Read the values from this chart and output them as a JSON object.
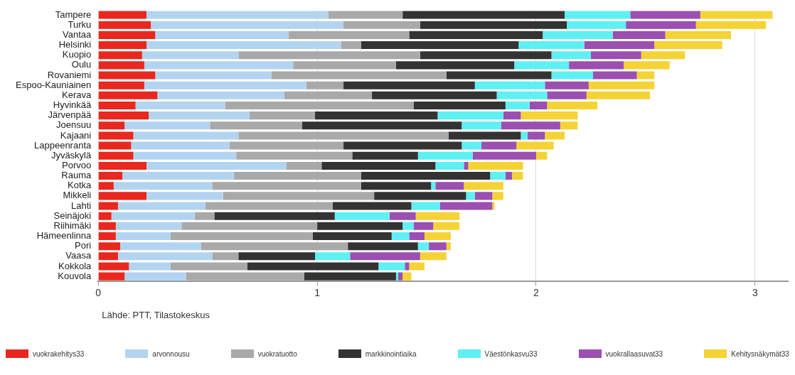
{
  "chart_data": {
    "type": "bar",
    "orientation": "horizontal",
    "stacked": true,
    "categories": [
      "Tampere",
      "Turku",
      "Vantaa",
      "Helsinki",
      "Kuopio",
      "Oulu",
      "Rovaniemi",
      "Espoo-Kauniainen",
      "Kerava",
      "Hyvinkää",
      "Järvenpää",
      "Joensuu",
      "Kajaani",
      "Lappeenranta",
      "Jyväskylä",
      "Porvoo",
      "Rauma",
      "Kotka",
      "Mikkeli",
      "Lahti",
      "Seinäjoki",
      "Riihimäki",
      "Hämeenlinna",
      "Pori",
      "Vaasa",
      "Kokkola",
      "Kouvola"
    ],
    "series": [
      {
        "name": "vuokrakehitys33",
        "color": "#e8281e",
        "values": [
          0.22,
          0.24,
          0.26,
          0.22,
          0.2,
          0.21,
          0.26,
          0.21,
          0.27,
          0.17,
          0.23,
          0.12,
          0.16,
          0.15,
          0.16,
          0.22,
          0.11,
          0.07,
          0.22,
          0.09,
          0.06,
          0.08,
          0.08,
          0.1,
          0.09,
          0.14,
          0.12
        ]
      },
      {
        "name": "arvonnousu",
        "color": "#b3d4f0",
        "values": [
          0.83,
          0.88,
          0.61,
          0.89,
          0.44,
          0.68,
          0.53,
          0.74,
          0.58,
          0.41,
          0.46,
          0.39,
          0.48,
          0.45,
          0.47,
          0.64,
          0.51,
          0.45,
          0.35,
          0.4,
          0.38,
          0.3,
          0.25,
          0.37,
          0.43,
          0.19,
          0.28
        ]
      },
      {
        "name": "vuokratuotto",
        "color": "#a9a9a9",
        "values": [
          0.34,
          0.35,
          0.55,
          0.09,
          0.83,
          0.47,
          0.8,
          0.17,
          0.4,
          0.86,
          0.3,
          0.42,
          0.96,
          0.52,
          0.53,
          0.16,
          0.58,
          0.68,
          0.69,
          0.58,
          0.09,
          0.62,
          0.65,
          0.67,
          0.12,
          0.35,
          0.54
        ]
      },
      {
        "name": "markkinointiaika",
        "color": "#333333",
        "values": [
          0.74,
          0.67,
          0.61,
          0.72,
          0.6,
          0.54,
          0.48,
          0.6,
          0.57,
          0.42,
          0.56,
          0.73,
          0.33,
          0.54,
          0.3,
          0.52,
          0.59,
          0.32,
          0.42,
          0.36,
          0.55,
          0.39,
          0.36,
          0.32,
          0.35,
          0.6,
          0.42
        ]
      },
      {
        "name": "Väestönkasvu33",
        "color": "#5ef0f2",
        "values": [
          0.3,
          0.27,
          0.32,
          0.3,
          0.18,
          0.25,
          0.19,
          0.32,
          0.23,
          0.11,
          0.3,
          0.18,
          0.03,
          0.09,
          0.25,
          0.13,
          0.07,
          0.02,
          0.04,
          0.13,
          0.25,
          0.05,
          0.08,
          0.05,
          0.16,
          0.12,
          0.01
        ]
      },
      {
        "name": "vuokrallaasuvat33",
        "color": "#9b4fb0",
        "values": [
          0.32,
          0.32,
          0.24,
          0.32,
          0.23,
          0.25,
          0.2,
          0.2,
          0.18,
          0.08,
          0.08,
          0.27,
          0.08,
          0.16,
          0.29,
          0.02,
          0.03,
          0.13,
          0.08,
          0.24,
          0.12,
          0.09,
          0.07,
          0.08,
          0.32,
          0.02,
          0.02
        ]
      },
      {
        "name": "Kehitysnäkymät33",
        "color": "#f5d336",
        "values": [
          0.33,
          0.32,
          0.3,
          0.31,
          0.2,
          0.21,
          0.08,
          0.3,
          0.29,
          0.23,
          0.26,
          0.08,
          0.09,
          0.17,
          0.05,
          0.25,
          0.05,
          0.18,
          0.05,
          0.01,
          0.2,
          0.12,
          0.12,
          0.02,
          0.12,
          0.07,
          0.04
        ]
      }
    ],
    "xlim": [
      0,
      3.15
    ],
    "xticks": [
      0,
      1,
      2,
      3
    ],
    "grid": "x",
    "legend": "bottom",
    "annotations": [
      "Lähde: PTT, Tilastokeskus"
    ]
  }
}
